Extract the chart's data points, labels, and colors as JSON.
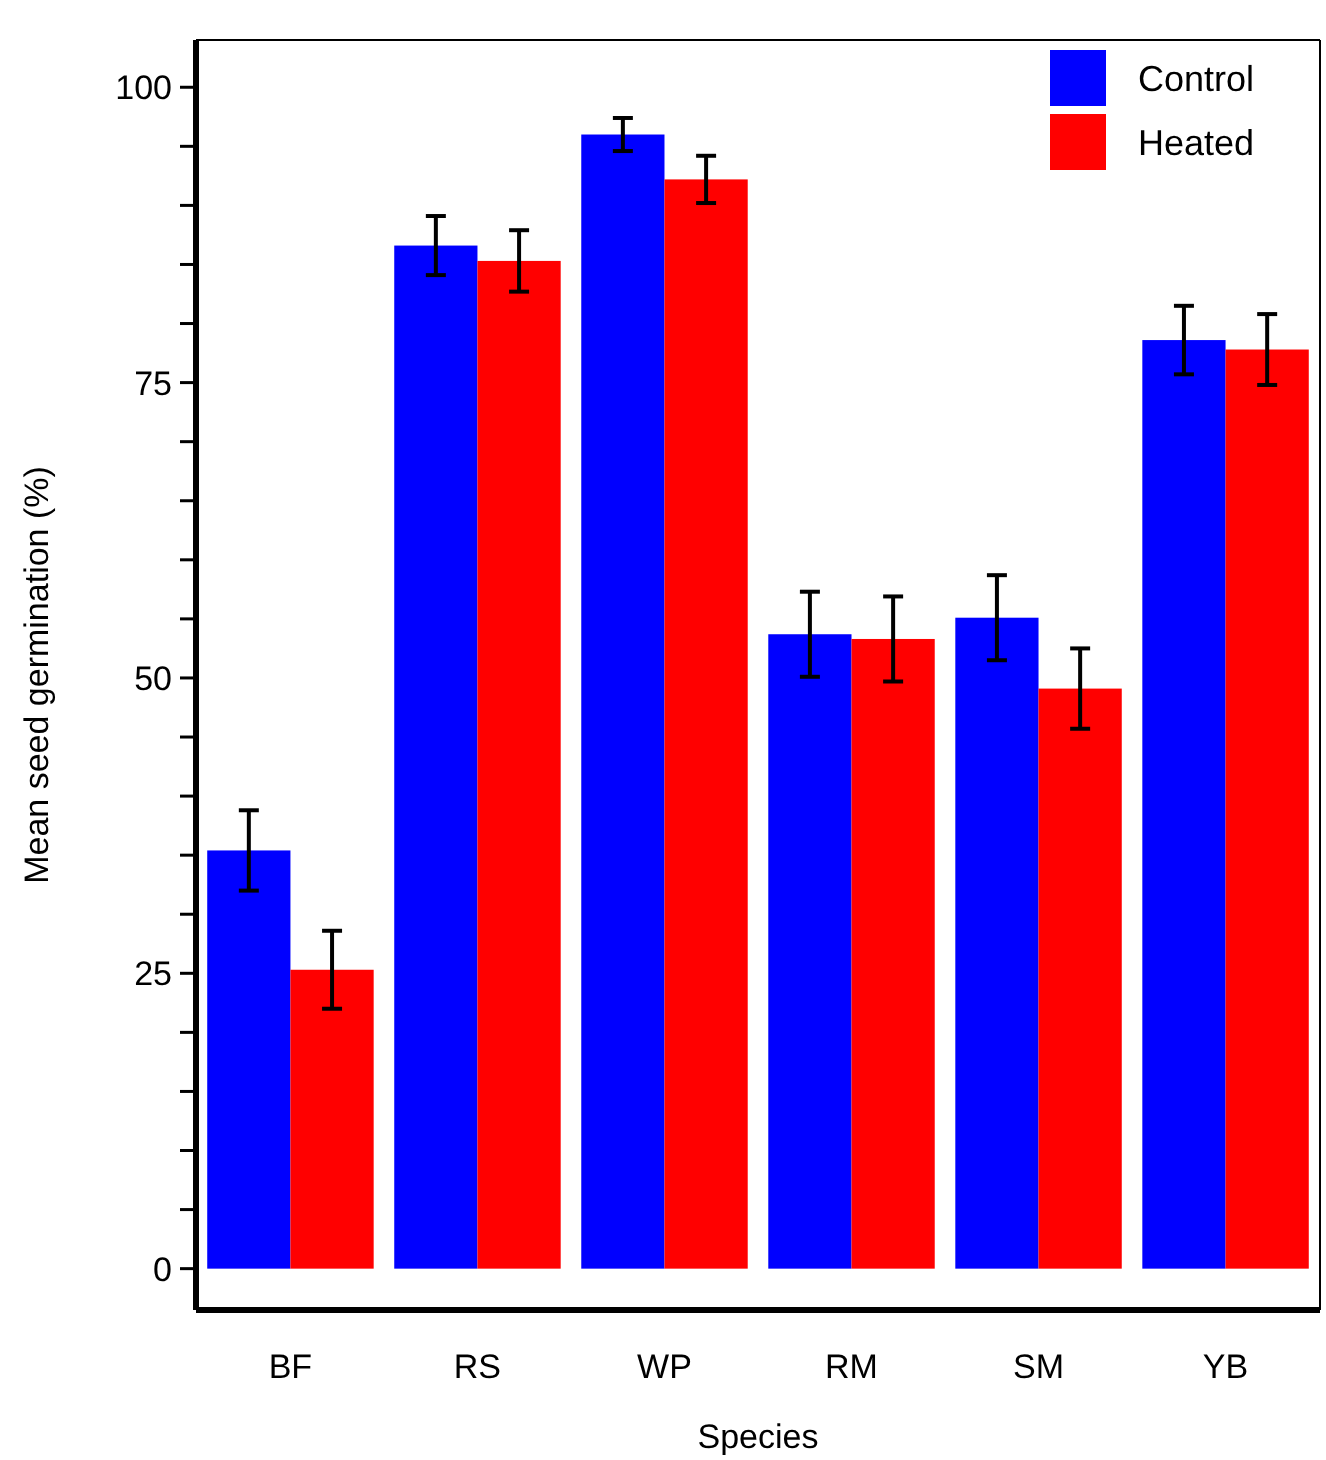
{
  "chart_data": {
    "type": "bar",
    "xlabel": "Species",
    "ylabel": "Mean seed germination (%)",
    "categories": [
      "BF",
      "RS",
      "WP",
      "RM",
      "SM",
      "YB"
    ],
    "series": [
      {
        "name": "Control",
        "color": "#0000ff",
        "values": [
          35.4,
          86.6,
          96.0,
          53.7,
          55.1,
          78.6
        ],
        "errors": [
          3.4,
          2.5,
          1.4,
          3.6,
          3.6,
          2.9
        ]
      },
      {
        "name": "Heated",
        "color": "#ff0000",
        "values": [
          25.3,
          85.3,
          92.2,
          53.3,
          49.1,
          77.8
        ],
        "errors": [
          3.3,
          2.6,
          2.0,
          3.6,
          3.4,
          3.0
        ]
      }
    ],
    "ylim": [
      -3.5,
      104
    ],
    "yticks": [
      0,
      {
        "value": 5,
        "label": null
      },
      {
        "value": 10,
        "label": null
      },
      {
        "value": 15,
        "label": null
      },
      {
        "value": 20,
        "label": null
      },
      25,
      {
        "value": 30,
        "label": null
      },
      {
        "value": 35,
        "label": null
      },
      {
        "value": 40,
        "label": null
      },
      {
        "value": 45,
        "label": null
      },
      50,
      {
        "value": 55,
        "label": null
      },
      {
        "value": 60,
        "label": null
      },
      {
        "value": 65,
        "label": null
      },
      {
        "value": 70,
        "label": null
      },
      75,
      {
        "value": 80,
        "label": null
      },
      {
        "value": 85,
        "label": null
      },
      {
        "value": 90,
        "label": null
      },
      {
        "value": 95,
        "label": null
      },
      100
    ],
    "legend": "top right",
    "grid": false
  }
}
